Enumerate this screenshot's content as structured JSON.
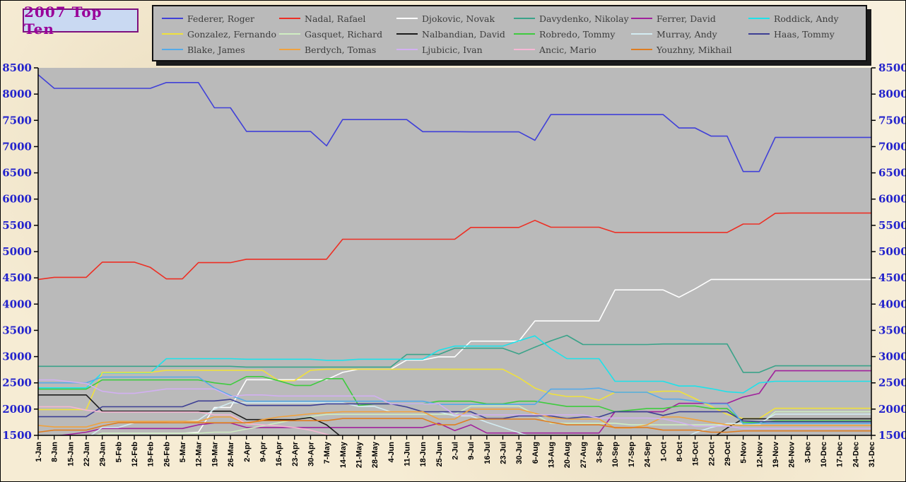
{
  "title": {
    "text": "2007 Top Ten",
    "color": "#990099",
    "bg": "#c9d9f2",
    "border": "#7d0f7d"
  },
  "legend": {
    "bg": "#bababa",
    "text_color": "#3d3d3d"
  },
  "chart_data": {
    "type": "line",
    "title": "2007 Top Ten",
    "xlabel": "",
    "ylabel": "",
    "grid": false,
    "legend_position": "top",
    "plot_bg_color": "#bababa",
    "axis_line_color": "#000000",
    "y_axis_label_color": "#2222cc",
    "x_axis_label_color": "#000000",
    "ylim": [
      1500,
      8500
    ],
    "y_ticks": [
      8500,
      8000,
      7500,
      7000,
      6500,
      6000,
      5500,
      5000,
      4500,
      4000,
      3500,
      3000,
      2500,
      2000,
      1500
    ],
    "x_tick_labels": [
      "1-Jan",
      "8-Jan",
      "15-Jan",
      "22-Jan",
      "29-Jan",
      "5-Feb",
      "12-Feb",
      "19-Feb",
      "26-Feb",
      "5-Mar",
      "12-Mar",
      "19-Mar",
      "26-Mar",
      "2-Apr",
      "9-Apr",
      "16-Apr",
      "23-Apr",
      "30-Apr",
      "7-May",
      "14-May",
      "21-May",
      "28-May",
      "4-Jun",
      "11-Jun",
      "18-Jun",
      "25-Jun",
      "2-Jul",
      "9-Jul",
      "16-Jul",
      "23-Jul",
      "30-Jul",
      "6-Aug",
      "13-Aug",
      "20-Aug",
      "27-Aug",
      "3-Sep",
      "10-Sep",
      "17-Sep",
      "24-Sep",
      "1-Oct",
      "8-Oct",
      "15-Oct",
      "22-Oct",
      "29-Oct",
      "5-Nov",
      "12-Nov",
      "19-Nov",
      "26-Nov",
      "3-Dec",
      "10-Dec",
      "17-Dec",
      "24-Dec",
      "31-Dec"
    ],
    "series": [
      {
        "name": "Federer, Roger",
        "color": "#4040d8",
        "values": [
          8370,
          8110,
          8110,
          8110,
          8110,
          8110,
          8110,
          8110,
          8220,
          8220,
          8220,
          7740,
          7740,
          7290,
          7290,
          7290,
          7290,
          7290,
          7015,
          7515,
          7515,
          7515,
          7515,
          7515,
          7285,
          7285,
          7285,
          7280,
          7280,
          7280,
          7280,
          7120,
          7610,
          7610,
          7610,
          7610,
          7610,
          7610,
          7610,
          7610,
          7355,
          7355,
          7200,
          7200,
          6525,
          6525,
          7175,
          7175,
          7175,
          7175,
          7175,
          7175,
          7175
        ]
      },
      {
        "name": "Nadal, Rafael",
        "color": "#ed2f24",
        "values": [
          4470,
          4510,
          4510,
          4510,
          4800,
          4800,
          4800,
          4700,
          4480,
          4480,
          4790,
          4790,
          4790,
          4855,
          4855,
          4855,
          4855,
          4855,
          4855,
          5235,
          5235,
          5235,
          5235,
          5235,
          5235,
          5235,
          5235,
          5460,
          5460,
          5460,
          5460,
          5595,
          5465,
          5465,
          5465,
          5465,
          5365,
          5365,
          5365,
          5365,
          5365,
          5365,
          5365,
          5365,
          5525,
          5525,
          5730,
          5735,
          5735,
          5735,
          5735,
          5735,
          5735
        ]
      },
      {
        "name": "Djokovic, Novak",
        "color": "#ffffff",
        "values": [
          1355,
          1380,
          1380,
          1430,
          1540,
          1540,
          1540,
          1540,
          1540,
          1540,
          1560,
          2030,
          2030,
          2560,
          2560,
          2560,
          2560,
          2560,
          2560,
          2700,
          2760,
          2760,
          2760,
          2935,
          2935,
          2995,
          2995,
          3295,
          3295,
          3295,
          3295,
          3680,
          3680,
          3680,
          3680,
          3680,
          4270,
          4270,
          4270,
          4270,
          4130,
          4290,
          4470,
          4470,
          4470,
          4470,
          4470,
          4470,
          4470,
          4470,
          4470,
          4470,
          4470
        ]
      },
      {
        "name": "Davydenko, Nikolay",
        "color": "#3aa389",
        "values": [
          2815,
          2815,
          2815,
          2815,
          2815,
          2815,
          2815,
          2815,
          2815,
          2815,
          2815,
          2815,
          2815,
          2800,
          2800,
          2800,
          2800,
          2800,
          2800,
          2800,
          2800,
          2800,
          2800,
          3040,
          3040,
          3040,
          3160,
          3160,
          3160,
          3160,
          3050,
          3180,
          3300,
          3405,
          3230,
          3230,
          3230,
          3230,
          3230,
          3240,
          3240,
          3240,
          3240,
          3240,
          2700,
          2700,
          2825,
          2825,
          2825,
          2825,
          2825,
          2825,
          2825
        ]
      },
      {
        "name": "Ferrer, David",
        "color": "#a0219c",
        "values": [
          1485,
          1485,
          1520,
          1560,
          1630,
          1630,
          1630,
          1630,
          1630,
          1630,
          1700,
          1735,
          1735,
          1650,
          1650,
          1650,
          1650,
          1650,
          1650,
          1650,
          1650,
          1650,
          1650,
          1650,
          1650,
          1730,
          1590,
          1700,
          1545,
          1545,
          1545,
          1545,
          1545,
          1545,
          1545,
          1545,
          1950,
          1950,
          1950,
          1950,
          2110,
          2110,
          2110,
          2110,
          2230,
          2300,
          2730,
          2730,
          2730,
          2730,
          2730,
          2730,
          2730
        ]
      },
      {
        "name": "Roddick, Andy",
        "color": "#1de2ea",
        "values": [
          2405,
          2405,
          2405,
          2405,
          2690,
          2690,
          2690,
          2690,
          2960,
          2960,
          2960,
          2960,
          2960,
          2950,
          2950,
          2950,
          2950,
          2950,
          2930,
          2930,
          2950,
          2950,
          2950,
          2950,
          2950,
          3120,
          3200,
          3200,
          3200,
          3200,
          3300,
          3395,
          3150,
          2960,
          2960,
          2960,
          2530,
          2530,
          2530,
          2530,
          2440,
          2440,
          2390,
          2330,
          2310,
          2500,
          2530,
          2530,
          2530,
          2530,
          2530,
          2530,
          2530
        ]
      },
      {
        "name": "Gonzalez, Fernando",
        "color": "#f0e13c",
        "values": [
          1990,
          1990,
          1990,
          1990,
          2700,
          2700,
          2700,
          2700,
          2740,
          2740,
          2740,
          2740,
          2740,
          2740,
          2740,
          2540,
          2540,
          2740,
          2760,
          2760,
          2760,
          2760,
          2760,
          2760,
          2760,
          2760,
          2760,
          2760,
          2760,
          2760,
          2600,
          2400,
          2290,
          2240,
          2240,
          2170,
          2320,
          2320,
          2320,
          2340,
          2340,
          2200,
          2050,
          1900,
          1820,
          1820,
          2015,
          2015,
          2015,
          2015,
          2015,
          2015,
          2015
        ]
      },
      {
        "name": "Gasquet, Richard",
        "color": "#cfeec2",
        "values": [
          1445,
          1445,
          1445,
          1445,
          1540,
          1540,
          1540,
          1540,
          1540,
          1540,
          1540,
          1560,
          1560,
          1620,
          1680,
          1740,
          1800,
          1860,
          1900,
          1900,
          1900,
          1900,
          1900,
          1900,
          1900,
          1900,
          1900,
          2060,
          2060,
          2060,
          2060,
          1900,
          1730,
          1730,
          1730,
          1730,
          1730,
          1700,
          1700,
          1700,
          1700,
          1700,
          1700,
          1700,
          1700,
          1700,
          1950,
          1950,
          1950,
          1950,
          1950,
          1950,
          1950
        ]
      },
      {
        "name": "Nalbandian, David",
        "color": "#1c1c1c",
        "values": [
          2270,
          2270,
          2270,
          2270,
          1960,
          1960,
          1960,
          1960,
          1960,
          1960,
          1960,
          1960,
          1960,
          1800,
          1800,
          1800,
          1800,
          1840,
          1700,
          1450,
          1400,
          1400,
          1400,
          1400,
          1400,
          1400,
          1400,
          1400,
          1400,
          1400,
          1400,
          1400,
          1400,
          1400,
          1400,
          1400,
          1400,
          1400,
          1400,
          1400,
          1400,
          1400,
          1430,
          1640,
          1815,
          1815,
          1815,
          1815,
          1815,
          1815,
          1815,
          1815,
          1815
        ]
      },
      {
        "name": "Robredo, Tommy",
        "color": "#3ecb3e",
        "values": [
          2380,
          2380,
          2380,
          2380,
          2555,
          2555,
          2555,
          2555,
          2555,
          2555,
          2555,
          2500,
          2465,
          2620,
          2620,
          2540,
          2450,
          2450,
          2580,
          2580,
          2070,
          2100,
          2100,
          2100,
          2100,
          2150,
          2150,
          2150,
          2100,
          2100,
          2150,
          2150,
          2100,
          2050,
          2050,
          2050,
          1950,
          1980,
          2010,
          2010,
          2060,
          2060,
          2010,
          2010,
          1745,
          1745,
          1775,
          1775,
          1775,
          1775,
          1775,
          1775,
          1775
        ]
      },
      {
        "name": "Murray, Andy",
        "color": "#d3ecf2",
        "values": [
          1370,
          1370,
          1390,
          1440,
          1650,
          1650,
          1740,
          1740,
          1740,
          1760,
          1790,
          2000,
          2120,
          2120,
          2120,
          2120,
          2120,
          2120,
          2120,
          2120,
          2050,
          2050,
          1950,
          1950,
          1950,
          1950,
          1870,
          1870,
          1750,
          1650,
          1550,
          1450,
          1400,
          1400,
          1400,
          1400,
          1400,
          1400,
          1400,
          1400,
          1400,
          1550,
          1650,
          1725,
          1725,
          1725,
          1905,
          1905,
          1905,
          1905,
          1905,
          1905,
          1905
        ]
      },
      {
        "name": "Haas, Tommy",
        "color": "#3d3f94",
        "values": [
          1855,
          1855,
          1855,
          1855,
          2045,
          2045,
          2045,
          2045,
          2045,
          2045,
          2155,
          2155,
          2185,
          2070,
          2070,
          2070,
          2070,
          2070,
          2100,
          2100,
          2100,
          2100,
          2100,
          2040,
          1950,
          1950,
          1950,
          1950,
          1820,
          1820,
          1870,
          1870,
          1870,
          1820,
          1850,
          1850,
          1950,
          1950,
          1950,
          1880,
          1950,
          1950,
          1950,
          1950,
          1775,
          1760,
          1760,
          1760,
          1760,
          1760,
          1760,
          1760,
          1760
        ]
      },
      {
        "name": "Blake, James",
        "color": "#55aae8",
        "values": [
          2500,
          2500,
          2500,
          2500,
          2610,
          2610,
          2610,
          2610,
          2610,
          2610,
          2610,
          2400,
          2260,
          2150,
          2150,
          2150,
          2150,
          2150,
          2150,
          2150,
          2150,
          2150,
          2150,
          2150,
          2150,
          2090,
          2090,
          2090,
          2090,
          2090,
          2090,
          2090,
          2380,
          2380,
          2380,
          2400,
          2320,
          2320,
          2320,
          2190,
          2190,
          2150,
          2100,
          2100,
          1720,
          1730,
          1730,
          1730,
          1730,
          1730,
          1730,
          1730,
          1730
        ]
      },
      {
        "name": "Berdych, Tomas",
        "color": "#f0a23e",
        "values": [
          1690,
          1660,
          1660,
          1660,
          1745,
          1765,
          1765,
          1765,
          1765,
          1765,
          1765,
          1850,
          1850,
          1720,
          1800,
          1850,
          1880,
          1910,
          1930,
          1950,
          1950,
          1950,
          1950,
          1950,
          1950,
          1810,
          1810,
          2000,
          2000,
          2000,
          2000,
          1920,
          1840,
          1810,
          1810,
          1810,
          1640,
          1640,
          1700,
          1850,
          1850,
          1800,
          1750,
          1700,
          1690,
          1690,
          1690,
          1690,
          1690,
          1690,
          1690,
          1690,
          1690
        ]
      },
      {
        "name": "Ljubicic, Ivan",
        "color": "#d2b0f2",
        "values": [
          2555,
          2555,
          2520,
          2490,
          2340,
          2300,
          2300,
          2340,
          2385,
          2385,
          2385,
          2385,
          2240,
          2270,
          2270,
          2250,
          2250,
          2250,
          2250,
          2250,
          2250,
          2250,
          2100,
          2100,
          2100,
          2100,
          1890,
          1890,
          1890,
          1890,
          1890,
          1890,
          1890,
          1890,
          1890,
          1830,
          1830,
          1830,
          1830,
          1815,
          1750,
          1675,
          1675,
          1675,
          1630,
          1630,
          1630,
          1630,
          1630,
          1630,
          1630,
          1630,
          1630
        ]
      },
      {
        "name": "Ancic, Mario",
        "color": "#f6b7d4",
        "values": [
          2045,
          2045,
          2045,
          1980,
          1945,
          1945,
          1945,
          1945,
          1945,
          1945,
          1945,
          1890,
          1890,
          1720,
          1700,
          1680,
          1650,
          1600,
          1520,
          1430,
          1400,
          1400,
          1400,
          1400,
          1400,
          1400,
          1400,
          1400,
          1400,
          1400,
          1400,
          1400,
          1400,
          1400,
          1400,
          1400,
          1400,
          1400,
          1400,
          1400,
          1400,
          1400,
          1400,
          1400,
          1400,
          1400,
          1400,
          1400,
          1400,
          1400,
          1400,
          1400,
          1400
        ]
      },
      {
        "name": "Youzhny, Mikhail",
        "color": "#df7d20",
        "values": [
          1560,
          1600,
          1600,
          1600,
          1680,
          1740,
          1740,
          1740,
          1740,
          1740,
          1740,
          1740,
          1740,
          1740,
          1780,
          1780,
          1780,
          1780,
          1780,
          1820,
          1820,
          1820,
          1820,
          1820,
          1820,
          1700,
          1700,
          1810,
          1810,
          1810,
          1810,
          1810,
          1750,
          1700,
          1700,
          1700,
          1650,
          1650,
          1650,
          1600,
          1600,
          1600,
          1560,
          1560,
          1585,
          1585,
          1585,
          1585,
          1585,
          1585,
          1585,
          1585,
          1585
        ]
      }
    ]
  }
}
